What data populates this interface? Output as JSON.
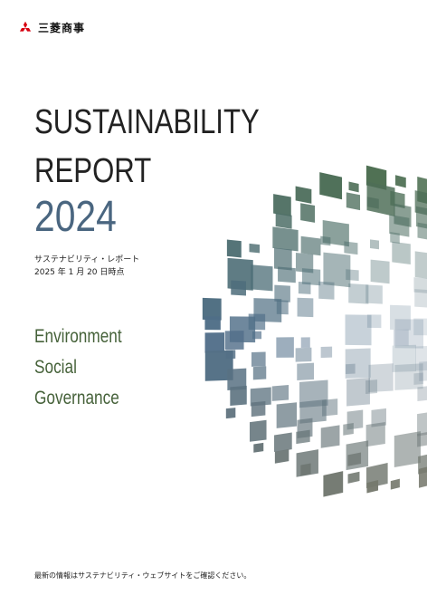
{
  "brand": {
    "name": "三菱商事",
    "logo": "three-diamonds-logo",
    "logo_color": "#d7000f"
  },
  "cover": {
    "title_line1": "SUSTAINABILITY",
    "title_line2": "REPORT",
    "year": "2024",
    "subtitle_line1": "サステナビリティ・レポート",
    "subtitle_line2": "2025 年 1 月 20 日時点",
    "esg": [
      "Environment",
      "Social",
      "Governance"
    ],
    "footer": "最新の情報はサステナビリティ・ウェブサイトをご確認ください。"
  },
  "colors": {
    "title": "#222222",
    "year": "#4a6680",
    "esg": "#46623a",
    "globe_green": "#4c6e4c",
    "globe_blue": "#4f6e8a",
    "globe_gray": "#7a7a6a"
  }
}
